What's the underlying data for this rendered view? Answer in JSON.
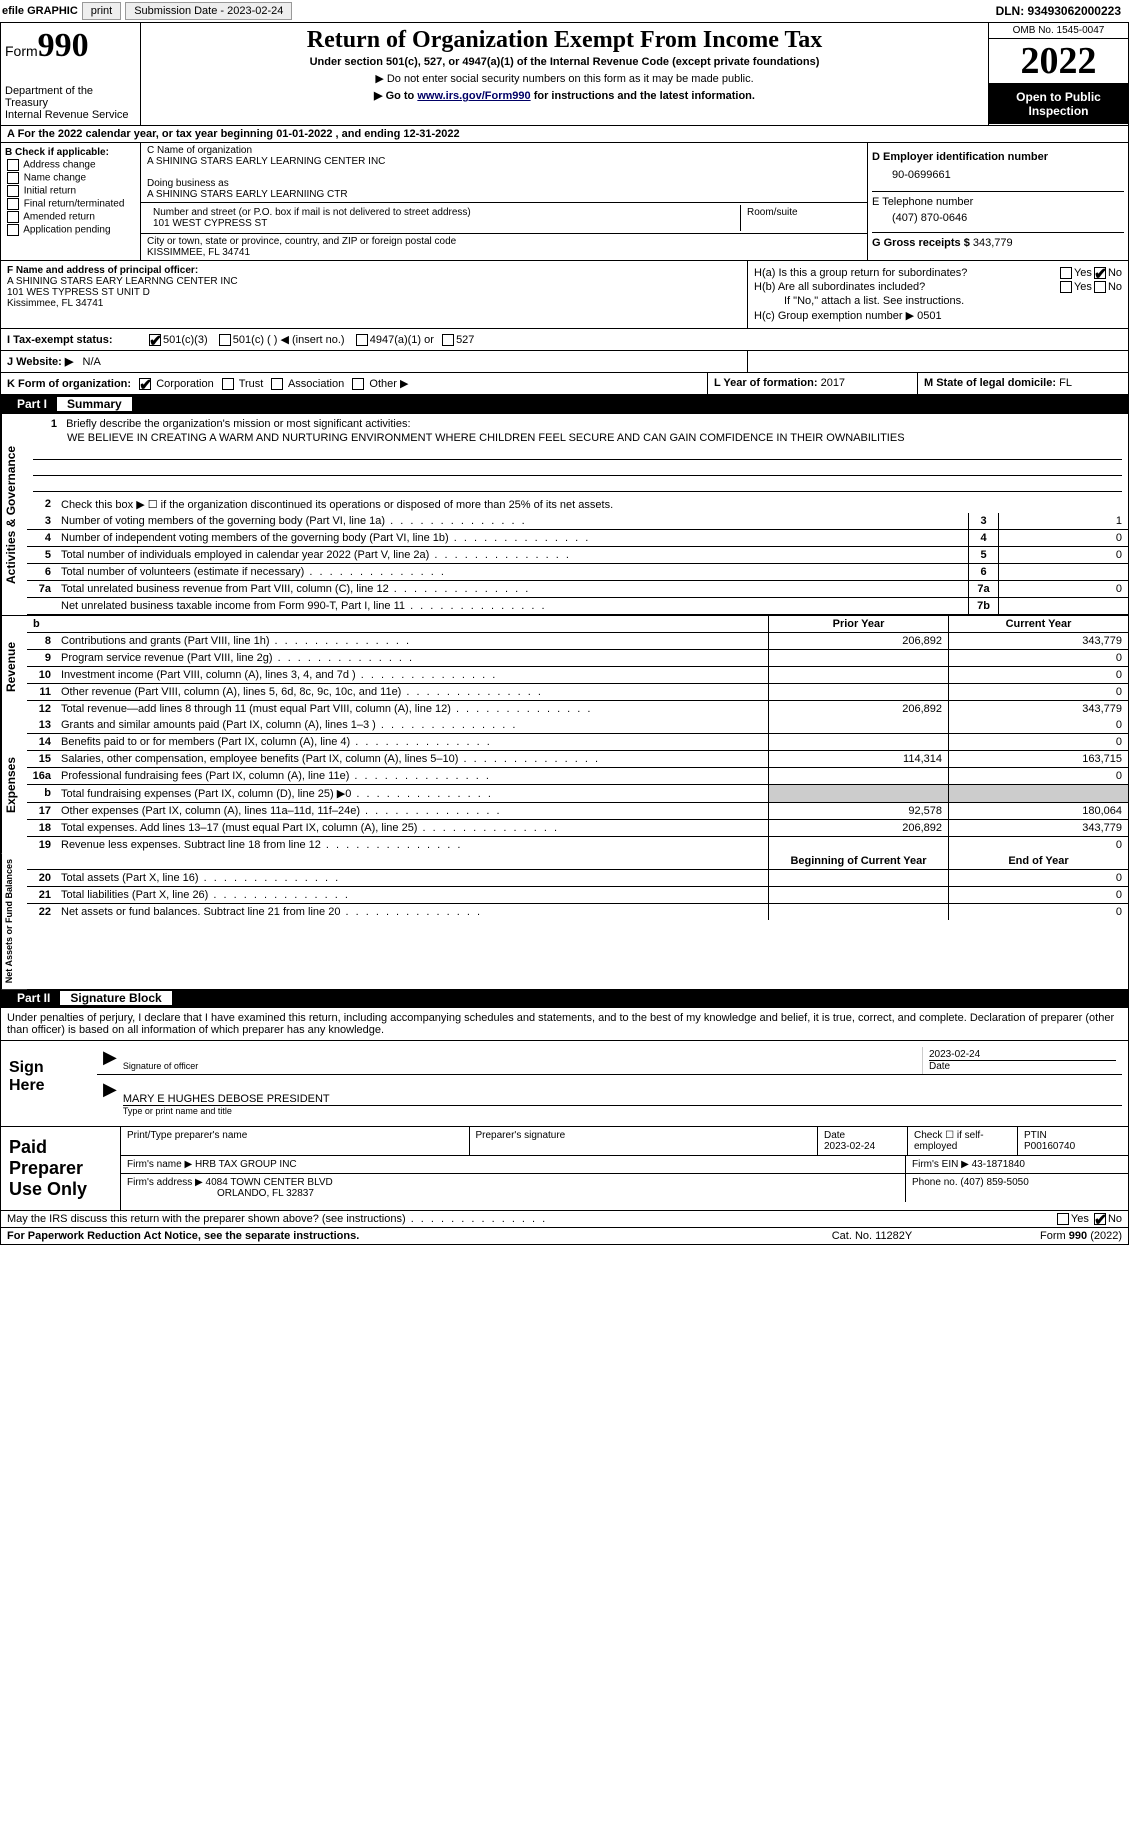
{
  "topbar": {
    "efile_label": "efile GRAPHIC",
    "print_btn": "print",
    "submission_label": "Submission Date - 2023-02-24",
    "dln": "DLN: 93493062000223"
  },
  "header": {
    "form_word": "Form",
    "form_num": "990",
    "dept": "Department of the Treasury",
    "irs": "Internal Revenue Service",
    "title": "Return of Organization Exempt From Income Tax",
    "sub": "Under section 501(c), 527, or 4947(a)(1) of the Internal Revenue Code (except private foundations)",
    "note1": "▶ Do not enter social security numbers on this form as it may be made public.",
    "note2_pre": "▶ Go to ",
    "note2_link": "www.irs.gov/Form990",
    "note2_post": " for instructions and the latest information.",
    "omb": "OMB No. 1545-0047",
    "year": "2022",
    "inspect": "Open to Public Inspection"
  },
  "row_a": "A For the 2022 calendar year, or tax year beginning 01-01-2022    , and ending 12-31-2022",
  "col_b": {
    "title": "B Check if applicable:",
    "items": [
      "Address change",
      "Name change",
      "Initial return",
      "Final return/terminated",
      "Amended return",
      "Application pending"
    ]
  },
  "col_c": {
    "name_label": "C Name of organization",
    "name": "A SHINING STARS EARLY LEARNING CENTER INC",
    "dba_label": "Doing business as",
    "dba": "A SHINING STARS EARLY LEARNIING CTR",
    "street_label": "Number and street (or P.O. box if mail is not delivered to street address)",
    "room_label": "Room/suite",
    "street": "101 WEST CYPRESS ST",
    "city_label": "City or town, state or province, country, and ZIP or foreign postal code",
    "city": "KISSIMMEE, FL  34741"
  },
  "col_d": {
    "ein_label": "D Employer identification number",
    "ein": "90-0699661",
    "tel_label": "E Telephone number",
    "tel": "(407) 870-0646",
    "gross_label": "G Gross receipts $",
    "gross": "343,779"
  },
  "row_f": {
    "label": "F Name and address of principal officer:",
    "name": "A SHINING STARS EARY LEARNNG CENTER INC",
    "street": "101 WES TYPRESS ST UNIT D",
    "city": "Kissimmee, FL  34741"
  },
  "row_h": {
    "ha": "H(a)  Is this a group return for subordinates?",
    "hb": "H(b)  Are all subordinates included?",
    "hb_note": "If \"No,\" attach a list. See instructions.",
    "hc": "H(c)  Group exemption number ▶",
    "hc_val": "0501"
  },
  "row_i": {
    "label": "I   Tax-exempt status:",
    "opts": [
      "501(c)(3)",
      "501(c) (   ) ◀ (insert no.)",
      "4947(a)(1) or",
      "527"
    ]
  },
  "row_j": {
    "label": "J   Website: ▶",
    "val": "N/A"
  },
  "row_k": {
    "k": "K Form of organization:",
    "opts": [
      "Corporation",
      "Trust",
      "Association",
      "Other ▶"
    ],
    "l_label": "L Year of formation:",
    "l_val": "2017",
    "m_label": "M State of legal domicile:",
    "m_val": "FL"
  },
  "part1": {
    "num": "Part I",
    "title": "Summary",
    "side1": "Activities & Governance",
    "side2": "Revenue",
    "side3": "Expenses",
    "side4": "Net Assets or Fund Balances",
    "l1_label": "Briefly describe the organization's mission or most significant activities:",
    "l1_text": "WE BELIEVE IN CREATING A WARM AND NURTURING ENVIRONMENT WHERE CHILDREN FEEL SECURE AND CAN GAIN COMFIDENCE IN THEIR OWNABILITIES",
    "l2": "Check this box ▶ ☐ if the organization discontinued its operations or disposed of more than 25% of its net assets.",
    "rows_a": [
      {
        "n": "3",
        "t": "Number of voting members of the governing body (Part VI, line 1a)",
        "box": "3",
        "v": "1"
      },
      {
        "n": "4",
        "t": "Number of independent voting members of the governing body (Part VI, line 1b)",
        "box": "4",
        "v": "0"
      },
      {
        "n": "5",
        "t": "Total number of individuals employed in calendar year 2022 (Part V, line 2a)",
        "box": "5",
        "v": "0"
      },
      {
        "n": "6",
        "t": "Total number of volunteers (estimate if necessary)",
        "box": "6",
        "v": ""
      },
      {
        "n": "7a",
        "t": "Total unrelated business revenue from Part VIII, column (C), line 12",
        "box": "7a",
        "v": "0"
      },
      {
        "n": "",
        "t": "Net unrelated business taxable income from Form 990-T, Part I, line 11",
        "box": "7b",
        "v": ""
      }
    ],
    "prior_label": "Prior Year",
    "current_label": "Current Year",
    "rows_rev": [
      {
        "n": "8",
        "t": "Contributions and grants (Part VIII, line 1h)",
        "p": "206,892",
        "c": "343,779"
      },
      {
        "n": "9",
        "t": "Program service revenue (Part VIII, line 2g)",
        "p": "",
        "c": "0"
      },
      {
        "n": "10",
        "t": "Investment income (Part VIII, column (A), lines 3, 4, and 7d )",
        "p": "",
        "c": "0"
      },
      {
        "n": "11",
        "t": "Other revenue (Part VIII, column (A), lines 5, 6d, 8c, 9c, 10c, and 11e)",
        "p": "",
        "c": "0"
      },
      {
        "n": "12",
        "t": "Total revenue—add lines 8 through 11 (must equal Part VIII, column (A), line 12)",
        "p": "206,892",
        "c": "343,779"
      }
    ],
    "rows_exp": [
      {
        "n": "13",
        "t": "Grants and similar amounts paid (Part IX, column (A), lines 1–3 )",
        "p": "",
        "c": "0"
      },
      {
        "n": "14",
        "t": "Benefits paid to or for members (Part IX, column (A), line 4)",
        "p": "",
        "c": "0"
      },
      {
        "n": "15",
        "t": "Salaries, other compensation, employee benefits (Part IX, column (A), lines 5–10)",
        "p": "114,314",
        "c": "163,715"
      },
      {
        "n": "16a",
        "t": "Professional fundraising fees (Part IX, column (A), line 11e)",
        "p": "",
        "c": "0"
      },
      {
        "n": "b",
        "t": "Total fundraising expenses (Part IX, column (D), line 25) ▶0",
        "p": "__SHADE__",
        "c": "__SHADE__"
      },
      {
        "n": "17",
        "t": "Other expenses (Part IX, column (A), lines 11a–11d, 11f–24e)",
        "p": "92,578",
        "c": "180,064"
      },
      {
        "n": "18",
        "t": "Total expenses. Add lines 13–17 (must equal Part IX, column (A), line 25)",
        "p": "206,892",
        "c": "343,779"
      },
      {
        "n": "19",
        "t": "Revenue less expenses. Subtract line 18 from line 12",
        "p": "",
        "c": "0"
      }
    ],
    "begin_label": "Beginning of Current Year",
    "end_label": "End of Year",
    "rows_net": [
      {
        "n": "20",
        "t": "Total assets (Part X, line 16)",
        "p": "",
        "c": "0"
      },
      {
        "n": "21",
        "t": "Total liabilities (Part X, line 26)",
        "p": "",
        "c": "0"
      },
      {
        "n": "22",
        "t": "Net assets or fund balances. Subtract line 21 from line 20",
        "p": "",
        "c": "0"
      }
    ]
  },
  "part2": {
    "num": "Part II",
    "title": "Signature Block",
    "declaration": "Under penalties of perjury, I declare that I have examined this return, including accompanying schedules and statements, and to the best of my knowledge and belief, it is true, correct, and complete. Declaration of preparer (other than officer) is based on all information of which preparer has any knowledge.",
    "sign_here": "Sign Here",
    "sig_officer": "Signature of officer",
    "sig_date": "2023-02-24",
    "date_label": "Date",
    "officer_name": "MARY E HUGHES DEBOSE  PRESIDENT",
    "officer_label": "Type or print name and title",
    "paid": "Paid Preparer Use Only",
    "prep_name_label": "Print/Type preparer's name",
    "prep_sig_label": "Preparer's signature",
    "prep_date_label": "Date",
    "prep_date": "2023-02-24",
    "check_if": "Check ☐ if self-employed",
    "ptin_label": "PTIN",
    "ptin": "P00160740",
    "firm_name_label": "Firm's name     ▶",
    "firm_name": "HRB TAX GROUP INC",
    "firm_ein_label": "Firm's EIN ▶",
    "firm_ein": "43-1871840",
    "firm_addr_label": "Firm's address ▶",
    "firm_addr1": "4084 TOWN CENTER BLVD",
    "firm_addr2": "ORLANDO, FL  32837",
    "phone_label": "Phone no.",
    "phone": "(407) 859-5050"
  },
  "footer": {
    "discuss": "May the IRS discuss this return with the preparer shown above? (see instructions)",
    "paperwork": "For Paperwork Reduction Act Notice, see the separate instructions.",
    "cat": "Cat. No. 11282Y",
    "form": "Form 990 (2022)"
  },
  "labels": {
    "yes": "Yes",
    "no": "No"
  }
}
